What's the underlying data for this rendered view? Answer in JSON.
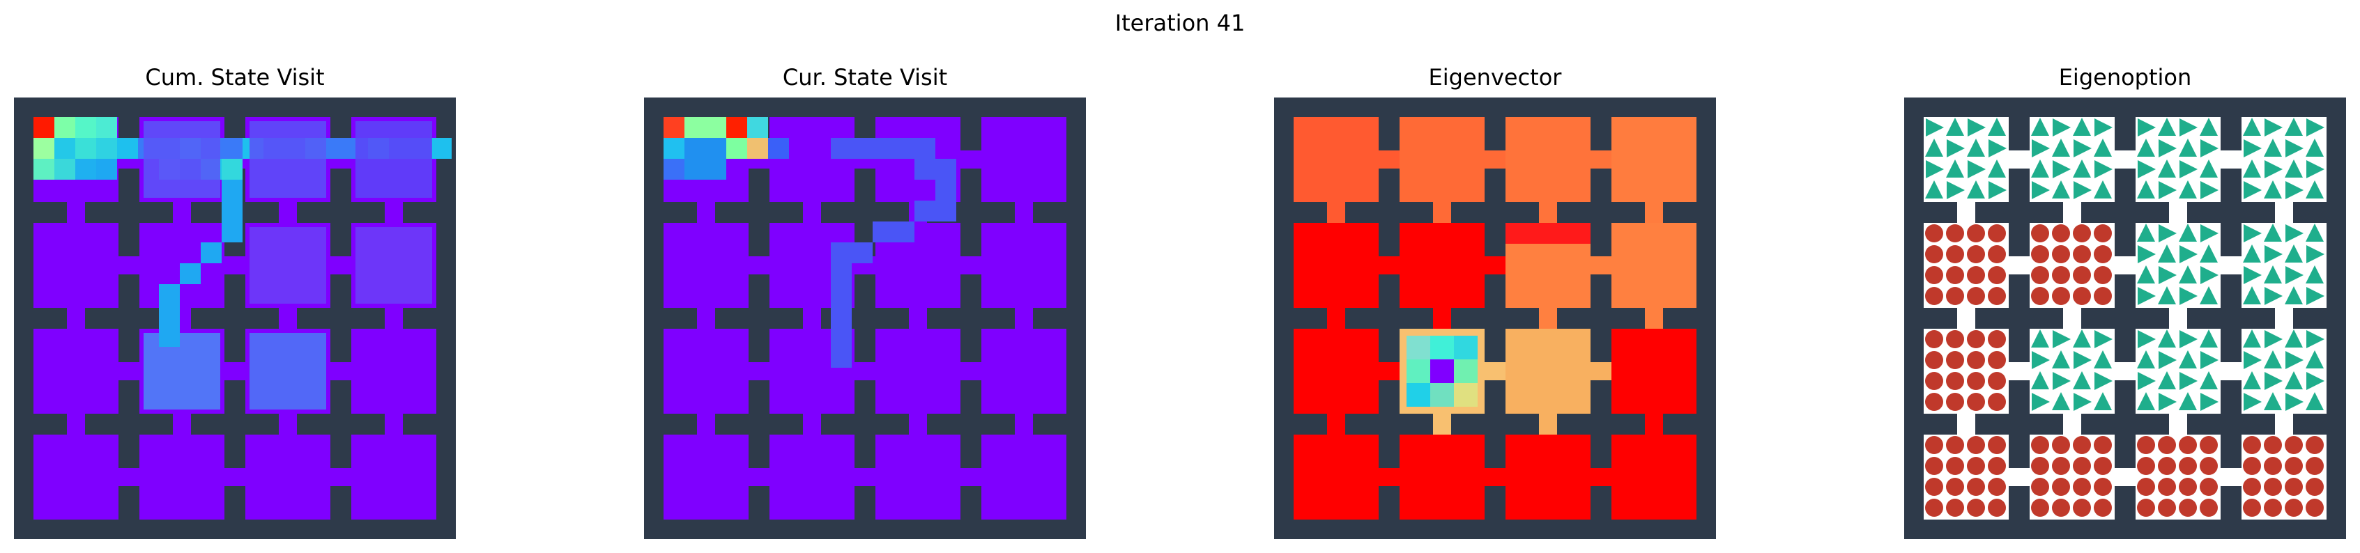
{
  "suptitle": "Iteration 41",
  "chart_data": [
    {
      "type": "heatmap",
      "title": "Cum. State Visit",
      "colormap": "rainbow",
      "wall_color": "#2e3a4a",
      "grid": [
        "WWWWWWWWWWWWWWWWWWWWWWWWWWWWW",
        "Wavvva??????WccccWccccW??cccW",
        "Wqsvvc?cccccc?????????????ccW",
        "Wnpvvn?cccccW?????????????ccW",
        "Wnpr?c?????c????a?W????ca?ccW",
        "WWWWWWWWWWWWWWWWWWWWWWWWWW?WW",
        "WcccccW?cccccWcccccW??cc?ccW",
        "WcccccW?cccccWcc????????bb?aW",
        "WcccccW?cccccccc??????????W?W",
        "WcccccW?ccccc???????????????W",
        "WcccccW?ccccc?????????????a?W",
        "WWWWcWWWWWcWWWWWccWWWWW?WWW",
        "WcccccW?ccccc???W??????????W",
        "WcccccW?c??????????????????W",
        "Wccccc??c?????????????????W?W",
        "Wccccc???????????????????ccW",
        "WcccccW????????????????????W",
        "WWcWWWWWWWcWWWWWcWWWWWWWcWWW",
        "WcccccW?cccccWcccccWcccccW",
        "WcccccW?cccccWcccccWcccccW",
        "WcccccccccccccccccccccccccW",
        "WcccccW?cccccWcccccWcccccW",
        "WcccccW?cccccWcccccWcccccW",
        "WWWWWWWWWWWWWWWWWWWWWWWWWWW"
      ]
    },
    {
      "type": "heatmap",
      "title": "Cur. State Visit",
      "colormap": "rainbow"
    },
    {
      "type": "heatmap",
      "title": "Eigenvector",
      "colormap": "rainbow"
    },
    {
      "type": "quiver",
      "title": "Eigenoption",
      "colors": {
        "arrow": "#1fae8c",
        "terminal": "#c0392b",
        "wall": "#2e3a4a"
      }
    }
  ]
}
